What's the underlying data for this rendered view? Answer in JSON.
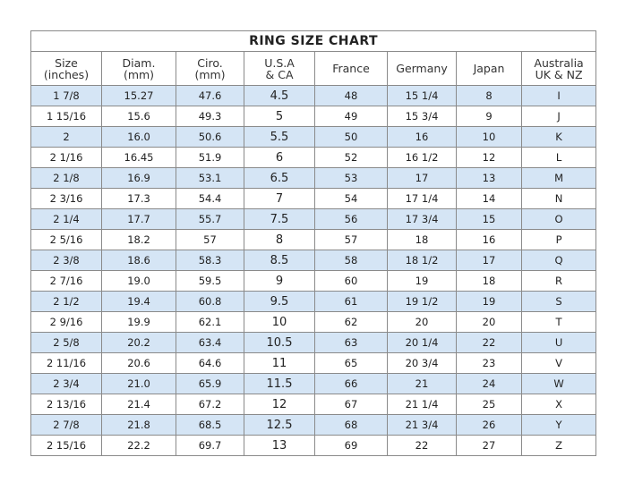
{
  "title": "RING  SIZE  CHART",
  "colors": {
    "stripe": "#d5e5f5",
    "border": "#8a8a8a"
  },
  "headers": [
    [
      "Size",
      "(inches)"
    ],
    [
      "Diam.",
      "(mm)"
    ],
    [
      "Ciro.",
      "(mm)"
    ],
    [
      "U.S.A",
      "& CA"
    ],
    [
      "France",
      ""
    ],
    [
      "Germany",
      ""
    ],
    [
      "Japan",
      ""
    ],
    [
      "Australia",
      "UK & NZ"
    ]
  ],
  "rows": [
    [
      "1 7/8",
      "15.27",
      "47.6",
      "4.5",
      "48",
      "15 1/4",
      "8",
      "I"
    ],
    [
      "1 15/16",
      "15.6",
      "49.3",
      "5",
      "49",
      "15 3/4",
      "9",
      "J"
    ],
    [
      "2",
      "16.0",
      "50.6",
      "5.5",
      "50",
      "16",
      "10",
      "K"
    ],
    [
      "2 1/16",
      "16.45",
      "51.9",
      "6",
      "52",
      "16 1/2",
      "12",
      "L"
    ],
    [
      "2 1/8",
      "16.9",
      "53.1",
      "6.5",
      "53",
      "17",
      "13",
      "M"
    ],
    [
      "2 3/16",
      "17.3",
      "54.4",
      "7",
      "54",
      "17 1/4",
      "14",
      "N"
    ],
    [
      "2 1/4",
      "17.7",
      "55.7",
      "7.5",
      "56",
      "17 3/4",
      "15",
      "O"
    ],
    [
      "2 5/16",
      "18.2",
      "57",
      "8",
      "57",
      "18",
      "16",
      "P"
    ],
    [
      "2 3/8",
      "18.6",
      "58.3",
      "8.5",
      "58",
      "18 1/2",
      "17",
      "Q"
    ],
    [
      "2 7/16",
      "19.0",
      "59.5",
      "9",
      "60",
      "19",
      "18",
      "R"
    ],
    [
      "2 1/2",
      "19.4",
      "60.8",
      "9.5",
      "61",
      "19 1/2",
      "19",
      "S"
    ],
    [
      "2 9/16",
      "19.9",
      "62.1",
      "10",
      "62",
      "20",
      "20",
      "T"
    ],
    [
      "2 5/8",
      "20.2",
      "63.4",
      "10.5",
      "63",
      "20 1/4",
      "22",
      "U"
    ],
    [
      "2 11/16",
      "20.6",
      "64.6",
      "11",
      "65",
      "20 3/4",
      "23",
      "V"
    ],
    [
      "2 3/4",
      "21.0",
      "65.9",
      "11.5",
      "66",
      "21",
      "24",
      "W"
    ],
    [
      "2 13/16",
      "21.4",
      "67.2",
      "12",
      "67",
      "21 1/4",
      "25",
      "X"
    ],
    [
      "2 7/8",
      "21.8",
      "68.5",
      "12.5",
      "68",
      "21 3/4",
      "26",
      "Y"
    ],
    [
      "2 15/16",
      "22.2",
      "69.7",
      "13",
      "69",
      "22",
      "27",
      "Z"
    ]
  ]
}
